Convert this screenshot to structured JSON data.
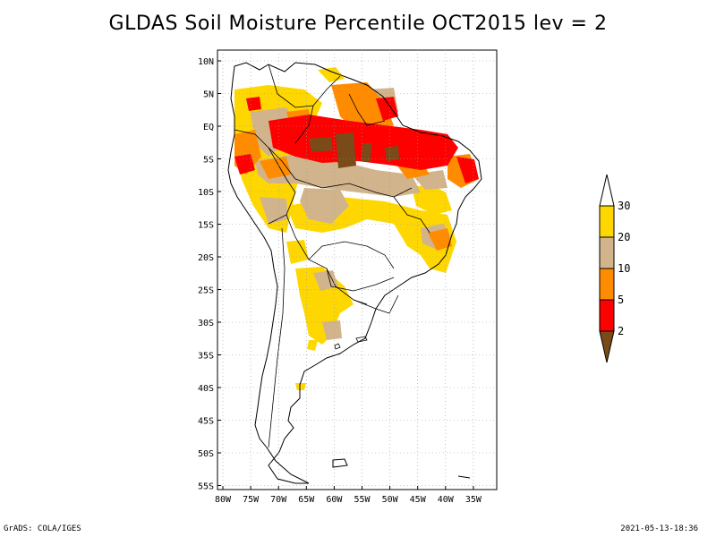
{
  "title": "GLDAS Soil Moisture Percentile OCT2015 lev = 2",
  "lat_labels": [
    "10N",
    "5N",
    "EQ",
    "5S",
    "10S",
    "15S",
    "20S",
    "25S",
    "30S",
    "35S",
    "40S",
    "45S",
    "50S",
    "55S"
  ],
  "lon_labels": [
    "80W",
    "75W",
    "70W",
    "65W",
    "60W",
    "55W",
    "50W",
    "45W",
    "40W",
    "35W"
  ],
  "colorbar": {
    "labels": [
      "2",
      "5",
      "10",
      "20",
      "30"
    ],
    "colors": {
      "below_2": "#7a4a18",
      "2_5": "#ff0000",
      "5_10": "#ff8c00",
      "10_20": "#d2b48c",
      "20_30": "#ffd700",
      "above_30": "#ffffff"
    }
  },
  "footer": {
    "left": "GrADS: COLA/IGES",
    "right": "2021-05-13-18:36"
  }
}
